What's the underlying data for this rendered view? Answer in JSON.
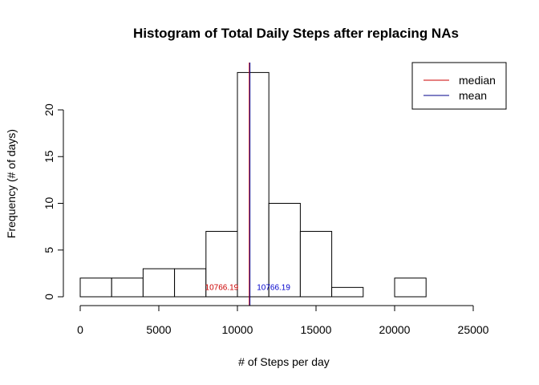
{
  "chart_data": {
    "type": "bar",
    "title": "Histogram of Total Daily Steps after replacing NAs",
    "xlabel": "# of Steps per day",
    "ylabel": "Frequency (# of days)",
    "bins": [
      {
        "start": 0,
        "end": 2000,
        "count": 2
      },
      {
        "start": 2000,
        "end": 4000,
        "count": 2
      },
      {
        "start": 4000,
        "end": 6000,
        "count": 3
      },
      {
        "start": 6000,
        "end": 8000,
        "count": 3
      },
      {
        "start": 8000,
        "end": 10000,
        "count": 7
      },
      {
        "start": 10000,
        "end": 12000,
        "count": 24
      },
      {
        "start": 12000,
        "end": 14000,
        "count": 10
      },
      {
        "start": 14000,
        "end": 16000,
        "count": 7
      },
      {
        "start": 16000,
        "end": 18000,
        "count": 1
      },
      {
        "start": 18000,
        "end": 20000,
        "count": 0
      },
      {
        "start": 20000,
        "end": 22000,
        "count": 2
      },
      {
        "start": 22000,
        "end": 24000,
        "count": 0
      },
      {
        "start": 24000,
        "end": 26000,
        "count": 0
      }
    ],
    "xlim": [
      0,
      26000
    ],
    "ylim": [
      0,
      25
    ],
    "xticks": [
      0,
      5000,
      10000,
      15000,
      20000,
      25000
    ],
    "yticks": [
      0,
      5,
      10,
      15,
      20
    ],
    "vlines": [
      {
        "name": "median",
        "value": 10766.19,
        "color": "#cc0000"
      },
      {
        "name": "mean",
        "value": 10766.19,
        "color": "#00008b"
      }
    ],
    "annotations": [
      {
        "text": "10766.19",
        "x": 9000,
        "y": 1,
        "color": "#cc0000"
      },
      {
        "text": "10766.19",
        "x": 12300,
        "y": 1,
        "color": "#0000cc"
      }
    ],
    "legend": {
      "position": "top-right",
      "entries": [
        {
          "label": "median",
          "color": "#cc0000"
        },
        {
          "label": "mean",
          "color": "#00008b"
        }
      ]
    },
    "grid": false
  }
}
